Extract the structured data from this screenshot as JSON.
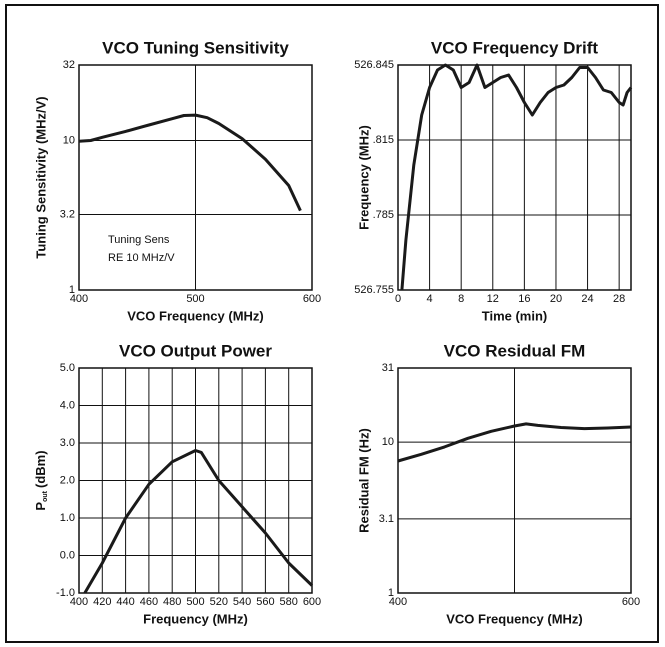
{
  "chart_data": [
    {
      "type": "line",
      "title": "VCO Tuning Sensitivity",
      "x_label": "VCO Frequency (MHz)",
      "y_label": "Tuning Sensitivity (MHz/V)",
      "annotations": [
        "Tuning Sens",
        "RE 10 MHz/V"
      ],
      "ylog": true,
      "grid": true,
      "color": "#1a1a1a",
      "xlim": [
        400,
        600
      ],
      "xticks": [
        400,
        500,
        600
      ],
      "ylim": [
        1,
        32
      ],
      "yticks": [
        1,
        3.2,
        10,
        32
      ],
      "x": [
        400,
        410,
        420,
        440,
        460,
        480,
        490,
        500,
        510,
        520,
        540,
        560,
        580,
        590
      ],
      "values": [
        9.9,
        10,
        10.5,
        11.5,
        12.7,
        14,
        14.7,
        14.8,
        14.2,
        13,
        10.3,
        7.5,
        5,
        3.4
      ]
    },
    {
      "type": "line",
      "title": "VCO Frequency Drift",
      "x_label": "Time (min)",
      "y_label": "Frequency (MHz)",
      "grid": true,
      "color": "#1a1a1a",
      "xlim": [
        0,
        29.5
      ],
      "xticks": [
        0,
        4,
        8,
        12,
        16,
        20,
        24,
        28
      ],
      "ylim": [
        526.755,
        526.845
      ],
      "yticks": [
        526.755,
        {
          "value": 526.785,
          "label": ".785"
        },
        {
          "value": 526.815,
          "label": ".815"
        },
        526.845
      ],
      "x": [
        0.5,
        1,
        2,
        3,
        4,
        5,
        6,
        7,
        8,
        9,
        10,
        11,
        12,
        13,
        14,
        15,
        16,
        17,
        18,
        19,
        20,
        21,
        22,
        23,
        24,
        25,
        26,
        27,
        28,
        28.5,
        29,
        29.5
      ],
      "values": [
        526.755,
        526.775,
        526.805,
        526.825,
        526.836,
        526.843,
        526.845,
        526.843,
        526.836,
        526.838,
        526.845,
        526.836,
        526.838,
        526.84,
        526.841,
        526.836,
        526.83,
        526.825,
        526.83,
        526.834,
        526.836,
        526.837,
        526.84,
        526.844,
        526.844,
        526.84,
        526.835,
        526.834,
        526.83,
        526.829,
        526.834,
        526.836
      ]
    },
    {
      "type": "line",
      "title": "VCO Output Power",
      "x_label": "Frequency (MHz)",
      "y_label": {
        "text": "P",
        "subscript": "out",
        "unit": "(dBm)"
      },
      "grid": true,
      "color": "#1a1a1a",
      "xlim": [
        400,
        600
      ],
      "xticks": [
        400,
        420,
        440,
        460,
        480,
        500,
        520,
        540,
        560,
        580,
        600
      ],
      "ylim": [
        -1,
        5
      ],
      "yticks": [
        {
          "value": -1,
          "label": "-1.0"
        },
        {
          "value": 0,
          "label": "0.0"
        },
        {
          "value": 1,
          "label": "1.0"
        },
        {
          "value": 2,
          "label": "2.0"
        },
        {
          "value": 3,
          "label": "3.0"
        },
        {
          "value": 4,
          "label": "4.0"
        },
        {
          "value": 5,
          "label": "5.0"
        }
      ],
      "x": [
        405,
        420,
        440,
        460,
        480,
        500,
        505,
        520,
        540,
        560,
        580,
        600
      ],
      "values": [
        -1,
        -0.2,
        1,
        1.9,
        2.5,
        2.8,
        2.75,
        2,
        1.3,
        0.6,
        -0.2,
        -0.8
      ]
    },
    {
      "type": "line",
      "title": "VCO Residual FM",
      "x_label": "VCO Frequency (MHz)",
      "y_label": "Residual FM (Hz)",
      "ylog": true,
      "grid": true,
      "color": "#1a1a1a",
      "xlim": [
        400,
        600
      ],
      "xticks": [
        400,
        600
      ],
      "xgrid": [
        500
      ],
      "ylim": [
        1,
        31
      ],
      "yticks": [
        1,
        3.1,
        10,
        31
      ],
      "x": [
        400,
        420,
        440,
        460,
        480,
        500,
        510,
        520,
        540,
        560,
        580,
        600
      ],
      "values": [
        7.5,
        8.3,
        9.3,
        10.6,
        11.8,
        12.8,
        13.2,
        12.9,
        12.5,
        12.3,
        12.4,
        12.6
      ]
    }
  ]
}
